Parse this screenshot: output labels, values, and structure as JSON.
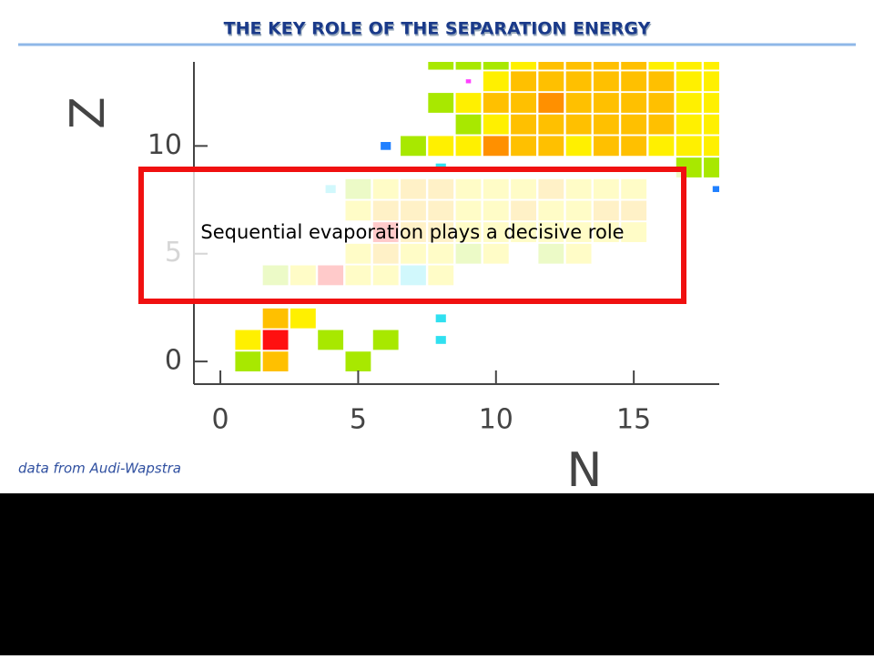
{
  "title": "THE KEY ROLE OF THE SEPARATION ENERGY",
  "callout": "Sequential evaporation plays a decisive role",
  "footnote": "data from Audi-Wapstra",
  "chart_data": {
    "type": "cells",
    "x_label": "N",
    "y_label": "Z",
    "xlim": [
      -0.96,
      18.1
    ],
    "ylim": [
      -1.05,
      13.9
    ],
    "xticks": [
      0,
      5,
      10,
      15
    ],
    "yticks": [
      0,
      5,
      10
    ],
    "cells": {
      "x": [
        1,
        2,
        5,
        1,
        2,
        4,
        6,
        8,
        2,
        3,
        8,
        2,
        3,
        4,
        5,
        6,
        7,
        8,
        5,
        6,
        7,
        8,
        9,
        10,
        12,
        13,
        6,
        7,
        8,
        9,
        10,
        11,
        12,
        13,
        14,
        15,
        5,
        6,
        7,
        8,
        9,
        10,
        11,
        12,
        13,
        14,
        15,
        4,
        5,
        6,
        7,
        8,
        9,
        10,
        11,
        12,
        13,
        14,
        15,
        18,
        8,
        17,
        18,
        6,
        7,
        8,
        9,
        10,
        11,
        12,
        13,
        14,
        15,
        16,
        17,
        18,
        9,
        10,
        11,
        12,
        13,
        14,
        15,
        16,
        17,
        18,
        8,
        9,
        10,
        11,
        12,
        13,
        14,
        15,
        16,
        17,
        18,
        9,
        10,
        11,
        12,
        13,
        14,
        15,
        16,
        17,
        18,
        8,
        9,
        10,
        11,
        12,
        13,
        14,
        15,
        16,
        17,
        18
      ],
      "y": [
        0,
        0,
        0,
        1,
        1,
        1,
        1,
        1,
        2,
        2,
        2,
        4,
        4,
        4,
        4,
        4,
        4,
        4,
        5,
        5,
        5,
        5,
        5,
        5,
        5,
        5,
        6,
        6,
        6,
        6,
        6,
        6,
        6,
        6,
        6,
        6,
        7,
        7,
        7,
        7,
        7,
        7,
        7,
        7,
        7,
        7,
        7,
        8,
        8,
        8,
        8,
        8,
        8,
        8,
        8,
        8,
        8,
        8,
        8,
        8,
        9,
        9,
        9,
        10,
        10,
        10,
        10,
        10,
        10,
        10,
        10,
        10,
        10,
        10,
        10,
        10,
        11,
        11,
        11,
        11,
        11,
        11,
        11,
        11,
        11,
        11,
        12,
        12,
        12,
        12,
        12,
        12,
        12,
        12,
        12,
        12,
        12,
        13,
        13,
        13,
        13,
        13,
        13,
        13,
        13,
        13,
        13,
        14,
        14,
        14,
        14,
        14,
        14,
        14,
        14,
        14,
        14,
        14
      ],
      "color": [
        "#a8e800",
        "#ffc000",
        "#a8e800",
        "#fff000",
        "#ff1010",
        "#a8e800",
        "#a8e800",
        "#30e0f0",
        "#ffc000",
        "#fff000",
        "#30e0f0",
        "#a8e800",
        "#fff000",
        "#ff1010",
        "#fff000",
        "#fff000",
        "#30e0f0",
        "#fff000",
        "#fff000",
        "#ffc000",
        "#fff000",
        "#fff000",
        "#a8e800",
        "#fff000",
        "#a8e800",
        "#fff000",
        "#ff1010",
        "#ffc000",
        "#ffc000",
        "#fff000",
        "#fff000",
        "#fff000",
        "#fff000",
        "#fff000",
        "#fff000",
        "#fff000",
        "#fff000",
        "#ffc000",
        "#ffc000",
        "#ffc000",
        "#fff000",
        "#fff000",
        "#ffc000",
        "#fff000",
        "#fff000",
        "#ffc000",
        "#ffc000",
        "#30e0f0",
        "#a8e800",
        "#fff000",
        "#ffc000",
        "#ffc000",
        "#fff000",
        "#fff000",
        "#fff000",
        "#ffc000",
        "#fff000",
        "#fff000",
        "#fff000",
        "#2080ff",
        "#30e0f0",
        "#a8e800",
        "#a8e800",
        "#2080ff",
        "#a8e800",
        "#fff000",
        "#fff000",
        "#ff9000",
        "#ffc000",
        "#ffc000",
        "#fff000",
        "#ffc000",
        "#ffc000",
        "#fff000",
        "#fff000",
        "#fff000",
        "#a8e800",
        "#fff000",
        "#ffc000",
        "#ffc000",
        "#ffc000",
        "#ffc000",
        "#ffc000",
        "#ffc000",
        "#fff000",
        "#fff000",
        "#a8e800",
        "#fff000",
        "#ffc000",
        "#ffc000",
        "#ff9000",
        "#ffc000",
        "#ffc000",
        "#ffc000",
        "#ffc000",
        "#fff000",
        "#fff000",
        "#ff40ff",
        "#fff000",
        "#ffc000",
        "#ffc000",
        "#ffc000",
        "#ffc000",
        "#ffc000",
        "#ffc000",
        "#fff000",
        "#fff000",
        "#a8e800",
        "#a8e800",
        "#a8e800",
        "#fff000",
        "#ffc000",
        "#ffc000",
        "#ffc000",
        "#ffc000",
        "#fff000",
        "#fff000",
        "#fff000"
      ],
      "size": [
        1,
        1,
        1,
        1,
        1,
        1,
        1,
        0.4,
        1,
        1,
        0.4,
        1,
        1,
        1,
        1,
        1,
        1,
        1,
        1,
        1,
        1,
        1,
        1,
        1,
        1,
        1,
        1,
        1,
        1,
        1,
        1,
        1,
        1,
        1,
        1,
        1,
        1,
        1,
        1,
        1,
        1,
        1,
        1,
        1,
        1,
        1,
        1,
        0.4,
        1,
        1,
        1,
        1,
        1,
        1,
        1,
        1,
        1,
        1,
        1,
        0.3,
        0.4,
        1,
        1,
        0.4,
        1,
        1,
        1,
        1,
        1,
        1,
        1,
        1,
        1,
        1,
        1,
        1,
        1,
        1,
        1,
        1,
        1,
        1,
        1,
        1,
        1,
        1,
        1,
        1,
        1,
        1,
        1,
        1,
        1,
        1,
        1,
        1,
        1,
        0.2,
        1,
        1,
        1,
        1,
        1,
        1,
        1,
        1,
        1,
        1,
        1,
        1,
        1,
        1,
        1,
        1,
        1,
        1,
        1,
        1
      ]
    }
  }
}
